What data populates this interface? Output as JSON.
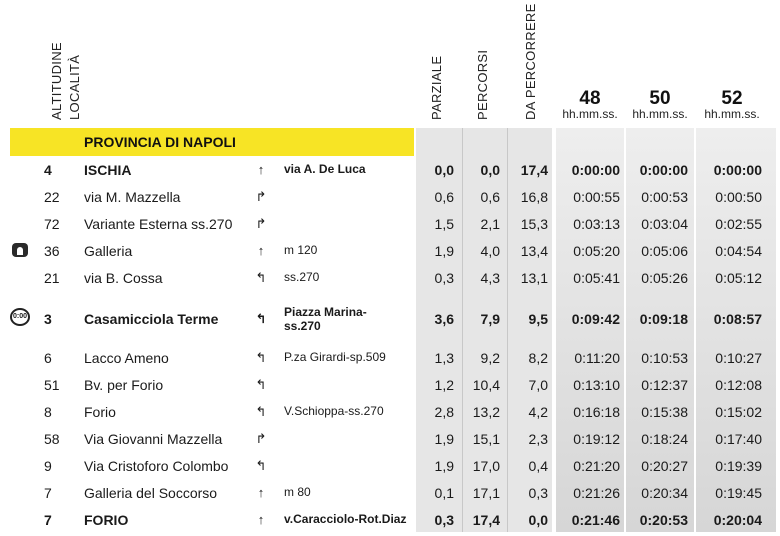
{
  "headers": {
    "altitudine": "ALTITUDINE",
    "localita": "LOCALITÀ",
    "parziale": "PARZIALE",
    "percorsi": "PERCORSI",
    "da_percorrere": "DA PERCORRERE",
    "speeds": [
      "48",
      "50",
      "52"
    ],
    "unit": "hh.mm.ss."
  },
  "province": "PROVINCIA DI NAPOLI",
  "clock_icon_text": "0:00",
  "rows": [
    {
      "alt": "4",
      "loc": "ISCHIA",
      "dir": "↑",
      "note": "via A. De Luca",
      "parz": "0,0",
      "perc": "0,0",
      "dap": "17,4",
      "t48": "0:00:00",
      "t50": "0:00:00",
      "t52": "0:00:00"
    },
    {
      "alt": "22",
      "loc": "via M. Mazzella",
      "dir": "↱",
      "note": "",
      "parz": "0,6",
      "perc": "0,6",
      "dap": "16,8",
      "t48": "0:00:55",
      "t50": "0:00:53",
      "t52": "0:00:50"
    },
    {
      "alt": "72",
      "loc": "Variante Esterna ss.270",
      "dir": "↱",
      "note": "",
      "parz": "1,5",
      "perc": "2,1",
      "dap": "15,3",
      "t48": "0:03:13",
      "t50": "0:03:04",
      "t52": "0:02:55"
    },
    {
      "alt": "36",
      "loc": "Galleria",
      "dir": "↑",
      "note": "m 120",
      "parz": "1,9",
      "perc": "4,0",
      "dap": "13,4",
      "t48": "0:05:20",
      "t50": "0:05:06",
      "t52": "0:04:54"
    },
    {
      "alt": "21",
      "loc": "via B. Cossa",
      "dir": "↰",
      "note": "ss.270",
      "parz": "0,3",
      "perc": "4,3",
      "dap": "13,1",
      "t48": "0:05:41",
      "t50": "0:05:26",
      "t52": "0:05:12"
    },
    {
      "alt": "3",
      "loc": "Casamicciola Terme",
      "dir": "↰",
      "note": "Piazza Marina-",
      "note2": "ss.270",
      "parz": "3,6",
      "perc": "7,9",
      "dap": "9,5",
      "t48": "0:09:42",
      "t50": "0:09:18",
      "t52": "0:08:57"
    },
    {
      "alt": "6",
      "loc": "Lacco Ameno",
      "dir": "↰",
      "note": "P.za Girardi-sp.509",
      "parz": "1,3",
      "perc": "9,2",
      "dap": "8,2",
      "t48": "0:11:20",
      "t50": "0:10:53",
      "t52": "0:10:27"
    },
    {
      "alt": "51",
      "loc": "Bv. per Forio",
      "dir": "↰",
      "note": "",
      "parz": "1,2",
      "perc": "10,4",
      "dap": "7,0",
      "t48": "0:13:10",
      "t50": "0:12:37",
      "t52": "0:12:08"
    },
    {
      "alt": "8",
      "loc": "Forio",
      "dir": "↰",
      "note": "V.Schioppa-ss.270",
      "parz": "2,8",
      "perc": "13,2",
      "dap": "4,2",
      "t48": "0:16:18",
      "t50": "0:15:38",
      "t52": "0:15:02"
    },
    {
      "alt": "58",
      "loc": "Via Giovanni Mazzella",
      "dir": "↱",
      "note": "",
      "parz": "1,9",
      "perc": "15,1",
      "dap": "2,3",
      "t48": "0:19:12",
      "t50": "0:18:24",
      "t52": "0:17:40"
    },
    {
      "alt": "9",
      "loc": "Via Cristoforo Colombo",
      "dir": "↰",
      "note": "",
      "parz": "1,9",
      "perc": "17,0",
      "dap": "0,4",
      "t48": "0:21:20",
      "t50": "0:20:27",
      "t52": "0:19:39"
    },
    {
      "alt": "7",
      "loc": "Galleria del Soccorso",
      "dir": "↑",
      "note": "m 80",
      "parz": "0,1",
      "perc": "17,1",
      "dap": "0,3",
      "t48": "0:21:26",
      "t50": "0:20:34",
      "t52": "0:19:45"
    },
    {
      "alt": "7",
      "loc": "FORIO",
      "dir": "↑",
      "note": "v.Caracciolo-Rot.Diaz",
      "parz": "0,3",
      "perc": "17,4",
      "dap": "0,0",
      "t48": "0:21:46",
      "t50": "0:20:53",
      "t52": "0:20:04"
    }
  ]
}
